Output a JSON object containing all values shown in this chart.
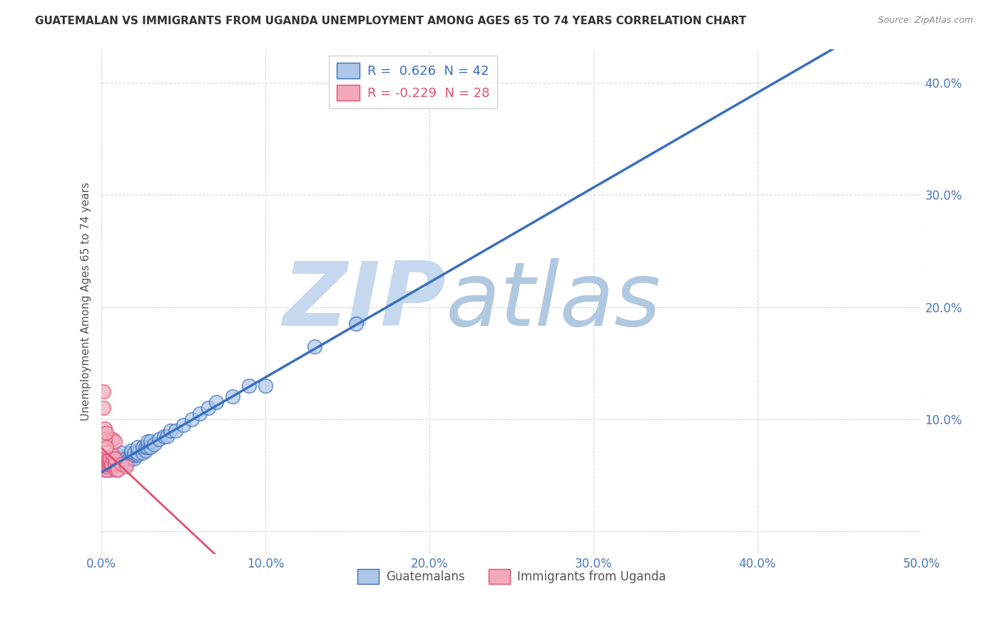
{
  "title": "GUATEMALAN VS IMMIGRANTS FROM UGANDA UNEMPLOYMENT AMONG AGES 65 TO 74 YEARS CORRELATION CHART",
  "source": "Source: ZipAtlas.com",
  "ylabel": "Unemployment Among Ages 65 to 74 years",
  "xlim": [
    0.0,
    0.5
  ],
  "ylim": [
    -0.02,
    0.43
  ],
  "xticks": [
    0.0,
    0.1,
    0.2,
    0.3,
    0.4,
    0.5
  ],
  "yticks": [
    0.0,
    0.1,
    0.2,
    0.3,
    0.4
  ],
  "xticklabels": [
    "0.0%",
    "10.0%",
    "20.0%",
    "30.0%",
    "40.0%",
    "50.0%"
  ],
  "yticklabels": [
    "",
    "10.0%",
    "20.0%",
    "30.0%",
    "40.0%"
  ],
  "blue_R": 0.626,
  "blue_N": 42,
  "pink_R": -0.229,
  "pink_N": 28,
  "blue_color": "#aec6e8",
  "pink_color": "#f4a8bc",
  "blue_line_color": "#3a6fbe",
  "pink_line_color": "#e05070",
  "watermark_zip": "ZIP",
  "watermark_atlas": "atlas",
  "watermark_color_zip": "#c5d8ee",
  "watermark_color_atlas": "#b0c8e0",
  "blue_scatter_x": [
    0.005,
    0.008,
    0.01,
    0.01,
    0.012,
    0.012,
    0.015,
    0.015,
    0.017,
    0.018,
    0.018,
    0.018,
    0.02,
    0.02,
    0.02,
    0.022,
    0.022,
    0.022,
    0.025,
    0.025,
    0.027,
    0.027,
    0.028,
    0.028,
    0.03,
    0.03,
    0.032,
    0.035,
    0.038,
    0.04,
    0.042,
    0.045,
    0.05,
    0.055,
    0.06,
    0.065,
    0.07,
    0.08,
    0.09,
    0.1,
    0.13,
    0.155
  ],
  "blue_scatter_y": [
    0.055,
    0.06,
    0.065,
    0.068,
    0.065,
    0.07,
    0.06,
    0.065,
    0.065,
    0.065,
    0.07,
    0.072,
    0.065,
    0.068,
    0.07,
    0.068,
    0.07,
    0.075,
    0.07,
    0.075,
    0.072,
    0.075,
    0.075,
    0.08,
    0.075,
    0.08,
    0.078,
    0.082,
    0.085,
    0.085,
    0.09,
    0.09,
    0.095,
    0.1,
    0.105,
    0.11,
    0.115,
    0.12,
    0.13,
    0.13,
    0.165,
    0.185
  ],
  "pink_scatter_x": [
    0.001,
    0.001,
    0.001,
    0.002,
    0.002,
    0.002,
    0.002,
    0.002,
    0.003,
    0.003,
    0.003,
    0.003,
    0.004,
    0.004,
    0.004,
    0.005,
    0.005,
    0.006,
    0.007,
    0.007,
    0.007,
    0.008,
    0.008,
    0.008,
    0.009,
    0.01,
    0.012,
    0.015
  ],
  "pink_scatter_y": [
    0.06,
    0.062,
    0.065,
    0.055,
    0.058,
    0.06,
    0.062,
    0.065,
    0.055,
    0.058,
    0.06,
    0.062,
    0.06,
    0.062,
    0.065,
    0.062,
    0.065,
    0.06,
    0.065,
    0.068,
    0.082,
    0.06,
    0.065,
    0.08,
    0.055,
    0.055,
    0.06,
    0.058
  ],
  "pink_outliers_x": [
    0.001,
    0.001,
    0.002,
    0.002,
    0.003,
    0.003
  ],
  "pink_outliers_y": [
    0.125,
    0.11,
    0.092,
    0.082,
    0.088,
    0.075
  ],
  "legend_blue_label": "Guatemalans",
  "legend_pink_label": "Immigrants from Uganda",
  "background_color": "#ffffff",
  "grid_color": "#d0d8e8"
}
